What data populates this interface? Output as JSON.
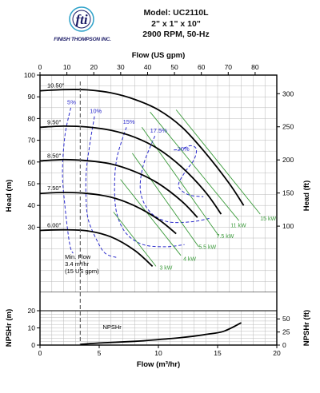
{
  "brand": {
    "company": "FINISH THOMPSON INC.",
    "logo_text": "fti"
  },
  "header": {
    "model": "Model: UC2110L",
    "size": "2\" x 1\" x 10\"",
    "speed": "2900 RPM, 50-Hz"
  },
  "colors": {
    "head_curve": "#000000",
    "efficiency": "#2b2bcc",
    "power": "#3a9a3a",
    "min_flow": "#555555",
    "grid": "#b8b8b8"
  },
  "chart_data": {
    "type": "line",
    "xlabel": "Flow (m³/hr)",
    "xlabel_top": "Flow (US gpm)",
    "ylabel_head": "Head (m)",
    "ylabel_head_right": "Head (ft)",
    "ylabel_npsh": "NPSHr (m)",
    "ylabel_npsh_right": "NPSHr (ft)",
    "xlim": [
      0,
      20
    ],
    "ylim_head": [
      0,
      100
    ],
    "ylim_npsh": [
      0,
      10
    ],
    "x_ticks": [
      "0",
      "5",
      "10",
      "15",
      "20"
    ],
    "top_ticks": [
      {
        "gpm": 0,
        "label": "0"
      },
      {
        "gpm": 10,
        "label": "10"
      },
      {
        "gpm": 20,
        "label": "20"
      },
      {
        "gpm": 30,
        "label": "30"
      },
      {
        "gpm": 40,
        "label": "40"
      },
      {
        "gpm": 50,
        "label": "50"
      },
      {
        "gpm": 60,
        "label": "60"
      },
      {
        "gpm": 70,
        "label": "70"
      },
      {
        "gpm": 80,
        "label": "80"
      }
    ],
    "head_ticks": [
      "30",
      "40",
      "50",
      "60",
      "70",
      "80",
      "90",
      "100"
    ],
    "npsh_ticks": [
      "0",
      "10",
      "20"
    ],
    "head_ft_ticks": [
      {
        "ft": 100,
        "label": "100"
      },
      {
        "ft": 150,
        "label": "150"
      },
      {
        "ft": 200,
        "label": "200"
      },
      {
        "ft": 250,
        "label": "250"
      },
      {
        "ft": 300,
        "label": "300"
      }
    ],
    "npsh_ft_ticks": [
      {
        "ft": 0,
        "label": "0"
      },
      {
        "ft": 25,
        "label": "25"
      },
      {
        "ft": 50,
        "label": "50"
      }
    ],
    "impeller_curves": [
      {
        "name": "10.50\"",
        "points": [
          [
            0,
            92.8
          ],
          [
            2,
            93.3
          ],
          [
            4,
            93.2
          ],
          [
            6,
            91.8
          ],
          [
            8,
            88.8
          ],
          [
            10,
            84
          ],
          [
            12,
            76
          ],
          [
            14,
            64
          ],
          [
            16,
            50
          ],
          [
            17.2,
            40
          ]
        ]
      },
      {
        "name": "9.50\"",
        "points": [
          [
            0,
            76
          ],
          [
            2,
            76.5
          ],
          [
            4,
            76.1
          ],
          [
            6,
            74.6
          ],
          [
            8,
            71.4
          ],
          [
            10,
            66
          ],
          [
            12,
            57.5
          ],
          [
            14,
            46
          ],
          [
            15.3,
            36
          ]
        ]
      },
      {
        "name": "8.50\"",
        "points": [
          [
            0,
            60.5
          ],
          [
            2,
            61.1
          ],
          [
            4,
            60.6
          ],
          [
            6,
            59.1
          ],
          [
            8,
            55.6
          ],
          [
            10,
            50.1
          ],
          [
            12,
            41.8
          ],
          [
            13.3,
            34.5
          ]
        ]
      },
      {
        "name": "7.50\"",
        "points": [
          [
            0,
            45.5
          ],
          [
            2,
            46
          ],
          [
            4,
            45.5
          ],
          [
            6,
            43.8
          ],
          [
            8,
            39.8
          ],
          [
            10,
            33.6
          ],
          [
            11.5,
            27
          ]
        ]
      },
      {
        "name": "6.00\"",
        "points": [
          [
            0,
            28.5
          ],
          [
            2,
            28.8
          ],
          [
            4,
            28.3
          ],
          [
            6,
            25.5
          ],
          [
            8,
            19.3
          ],
          [
            9.5,
            12
          ]
        ]
      }
    ],
    "efficiency_labels": [
      {
        "label": "5%",
        "x": 2.3,
        "y": 86.5
      },
      {
        "label": "10%",
        "x": 4.2,
        "y": 82.5
      },
      {
        "label": "15%",
        "x": 7.0,
        "y": 77.5
      },
      {
        "label": "17.5%",
        "x": 9.3,
        "y": 73.5
      },
      {
        "label": "20%",
        "x": 11.6,
        "y": 65.0
      }
    ],
    "efficiency_curves": [
      {
        "label": "5%",
        "points": [
          [
            2.6,
            85
          ],
          [
            2.1,
            72
          ],
          [
            1.9,
            55
          ],
          [
            2.1,
            40
          ],
          [
            2.4,
            26
          ],
          [
            2.6,
            20
          ],
          [
            2.8,
            18
          ]
        ]
      },
      {
        "label": "10%",
        "points": [
          [
            4.6,
            81
          ],
          [
            4.2,
            68
          ],
          [
            3.9,
            55
          ],
          [
            3.9,
            42
          ],
          [
            4.1,
            33
          ],
          [
            4.8,
            24
          ],
          [
            5.5,
            18
          ],
          [
            6.5,
            16
          ]
        ]
      },
      {
        "label": "15%",
        "points": [
          [
            7.3,
            76
          ],
          [
            6.5,
            62
          ],
          [
            6.3,
            48
          ],
          [
            6.5,
            36
          ],
          [
            7.3,
            27
          ],
          [
            8.7,
            22
          ],
          [
            10.6,
            21
          ],
          [
            12.2,
            22
          ]
        ]
      },
      {
        "label": "17.5%",
        "points": [
          [
            9.7,
            72
          ],
          [
            8.7,
            58
          ],
          [
            8.5,
            46
          ],
          [
            9.3,
            37
          ],
          [
            10.8,
            32.5
          ],
          [
            12.8,
            32.5
          ],
          [
            14.3,
            34
          ]
        ]
      },
      {
        "label": "20%",
        "points": [
          [
            11.3,
            65.5
          ],
          [
            12,
            66
          ],
          [
            12.7,
            67.5
          ],
          [
            13.2,
            66
          ],
          [
            13,
            61
          ],
          [
            12.2,
            55
          ],
          [
            11.7,
            49
          ],
          [
            12.5,
            45
          ],
          [
            13.8,
            44
          ]
        ]
      }
    ],
    "power_curves": [
      {
        "label": "3 kW",
        "points": [
          [
            6.2,
            37
          ],
          [
            9.8,
            12
          ]
        ],
        "lx": 10.1,
        "ly": 10.5
      },
      {
        "label": "4 kW",
        "points": [
          [
            6.8,
            52
          ],
          [
            11.9,
            17
          ]
        ],
        "lx": 12.1,
        "ly": 14.5
      },
      {
        "label": "5.5 kW",
        "points": [
          [
            7.8,
            64
          ],
          [
            13.4,
            21
          ]
        ],
        "lx": 13.4,
        "ly": 20.0
      },
      {
        "label": "7.5 kW",
        "points": [
          [
            8.6,
            76
          ],
          [
            15.1,
            26
          ]
        ],
        "lx": 14.9,
        "ly": 25.0
      },
      {
        "label": "11 kW",
        "points": [
          [
            9.3,
            83
          ],
          [
            16.8,
            33
          ]
        ],
        "lx": 16.1,
        "ly": 30.0
      },
      {
        "label": "15 kW",
        "points": [
          [
            11.5,
            84
          ],
          [
            18.6,
            36
          ]
        ],
        "lx": 18.6,
        "ly": 33.0
      }
    ],
    "min_flow": {
      "x": 3.4,
      "label_lines": [
        "Min. Flow",
        "3.4 m³/hr",
        "(15 US gpm)"
      ]
    },
    "npsh_curve": {
      "name": "NPSHr",
      "points": [
        [
          3.4,
          0.2
        ],
        [
          5,
          0.6
        ],
        [
          8,
          1.1
        ],
        [
          10,
          1.6
        ],
        [
          12,
          2.2
        ],
        [
          14,
          3.1
        ],
        [
          15.5,
          4.0
        ],
        [
          17,
          6.5
        ]
      ]
    }
  }
}
